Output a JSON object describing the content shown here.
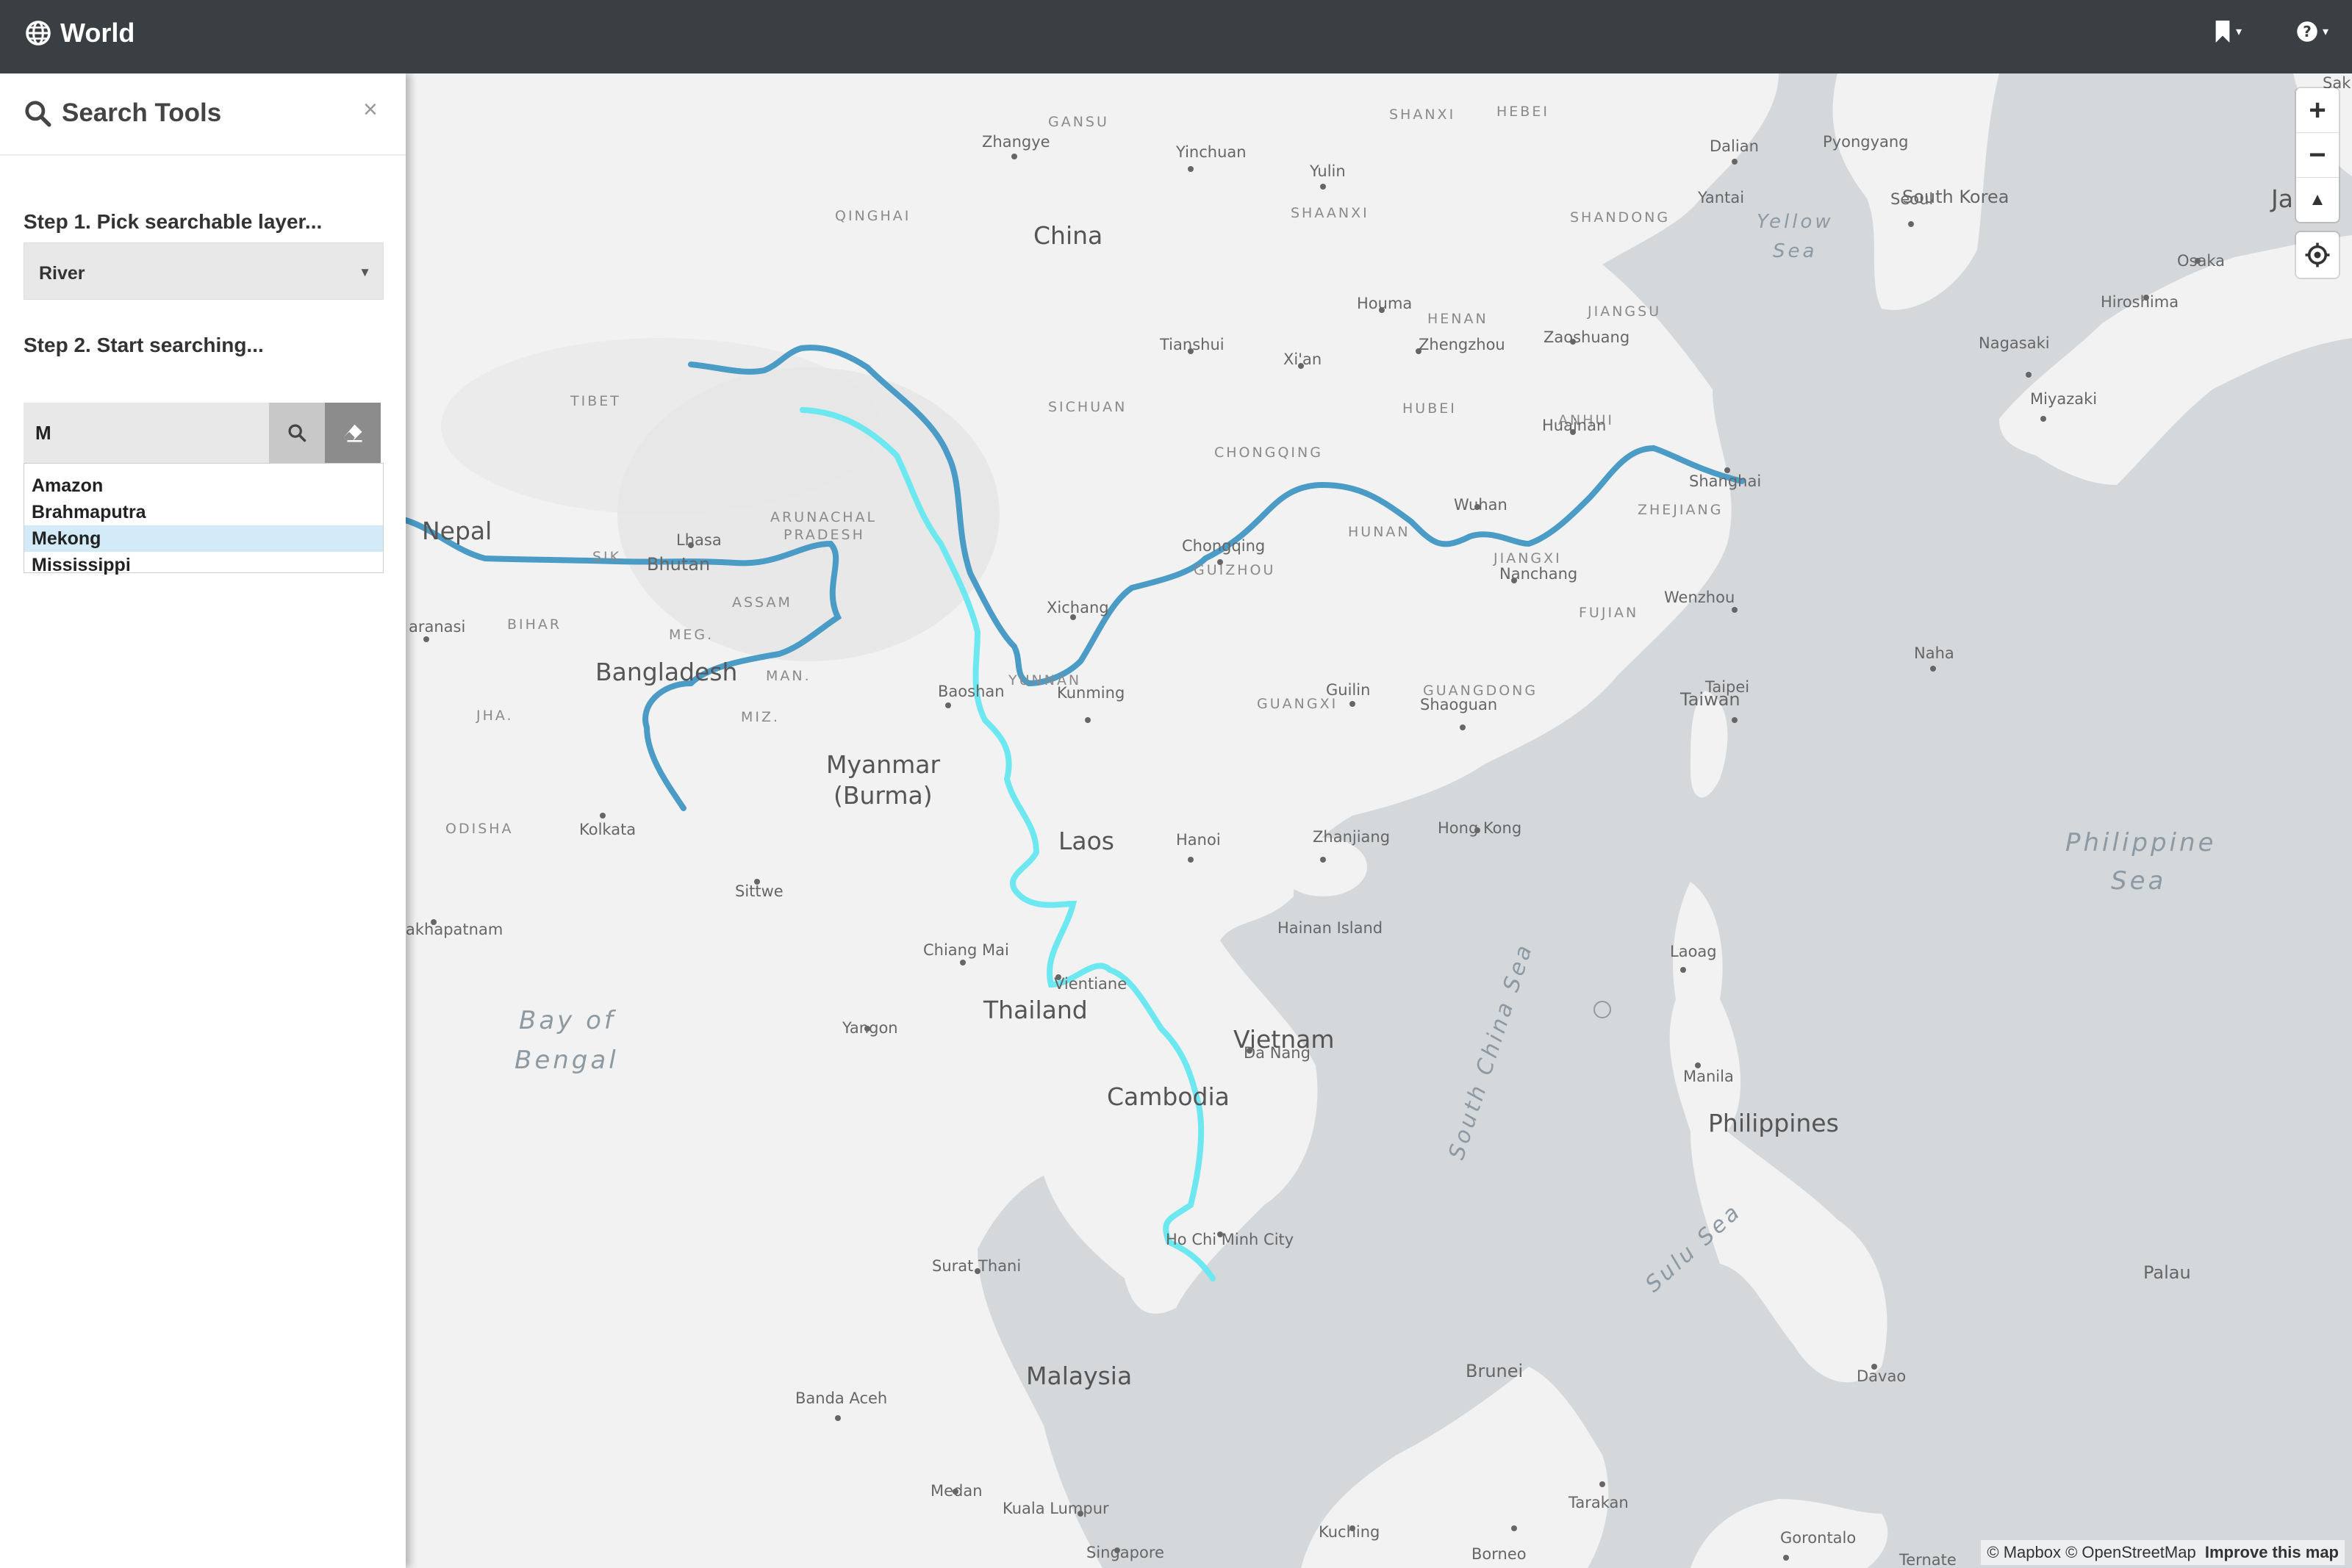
{
  "navbar": {
    "brand": "World",
    "brand_icon": "globe-icon",
    "bookmark_icon": "bookmark-icon",
    "help_icon": "question-circle-icon"
  },
  "sidebar": {
    "title": "Search Tools",
    "close": "×",
    "step1": "Step 1. Pick searchable layer...",
    "selected_layer": "River",
    "step2": "Step 2. Start searching...",
    "search_value": "M",
    "suggestions": [
      "Amazon",
      "Brahmaputra",
      "Mekong",
      "Mississippi"
    ],
    "highlighted_suggestion": "Mekong"
  },
  "map": {
    "zoom_in": "+",
    "zoom_out": "−",
    "compass": "▲",
    "attribution": "© Mapbox © OpenStreetMap",
    "attribution_link": "Improve this map",
    "colors": {
      "land": "#f2f2f2",
      "water": "#d4d8db",
      "river": "#4a9cc7",
      "highlight": "#6de8f0"
    },
    "labels": {
      "china": "China",
      "nepal": "Nepal",
      "bhutan": "Bhutan",
      "bangladesh": "Bangladesh",
      "myanmar1": "Myanmar",
      "myanmar2": "(Burma)",
      "laos": "Laos",
      "thailand": "Thailand",
      "vietnam": "Vietnam",
      "cambodia": "Cambodia",
      "malaysia": "Malaysia",
      "philippines": "Philippines",
      "south_korea": "South Korea",
      "taiwan": "Taiwan",
      "brunei": "Brunei",
      "palau": "Palau",
      "ja": "Ja",
      "yellow_sea1": "Yellow",
      "yellow_sea2": "Sea",
      "philippine_sea1": "Philippine",
      "philippine_sea2": "Sea",
      "bay_of1": "Bay of",
      "bay_of2": "Bengal",
      "south_china_sea": "South China Sea",
      "sulu_sea": "Sulu Sea",
      "qinghai": "QINGHAI",
      "gansu": "GANSU",
      "shaanxi": "SHAANXI",
      "shanxi": "SHANXI",
      "hebei": "HEBEI",
      "shandong": "SHANDONG",
      "henan": "HENAN",
      "jiangsu": "JIANGSU",
      "anhui": "ANHUI",
      "hubei": "HUBEI",
      "sichuan": "SICHUAN",
      "tibet": "TIBET",
      "chongqing_p": "CHONGQING",
      "hunan": "HUNAN",
      "guizhou": "GUIZHOU",
      "jiangxi": "JIANGXI",
      "zhejiang": "ZHEJIANG",
      "fujian": "FUJIAN",
      "yunnan": "YUNNAN",
      "guangxi": "GUANGXI",
      "guangdong": "GUANGDONG",
      "arunachal1": "ARUNACHAL",
      "arunachal2": "PRADESH",
      "assam": "ASSAM",
      "meg": "MEG.",
      "man": "MAN.",
      "miz": "MIZ.",
      "jha": "JHA.",
      "bihar": "BIHAR",
      "odisha": "ODISHA",
      "sik": "SIK.",
      "zhangye": "Zhangye",
      "yinchuan": "Yinchuan",
      "yulin": "Yulin",
      "dalian": "Dalian",
      "pyongyang": "Pyongyang",
      "yantai": "Yantai",
      "seoul": "Seoul",
      "houma": "Houma",
      "tianshui": "Tianshui",
      "xian": "Xi'an",
      "zhengzhou": "Zhengzhou",
      "zaoshuang": "Zaoshuang",
      "huainan": "Huainan",
      "shanghai": "Shanghai",
      "wuhan": "Wuhan",
      "chongqing": "Chongqing",
      "nanchang": "Nanchang",
      "xichang": "Xichang",
      "lhasa": "Lhasa",
      "baoshan": "Baoshan",
      "kunming": "Kunming",
      "guilin": "Guilin",
      "shaoguan": "Shaoguan",
      "wenzhou": "Wenzhou",
      "taipei": "Taipei",
      "naha": "Naha",
      "hanoi": "Hanoi",
      "zhanjiang": "Zhanjiang",
      "hong_kong": "Hong Kong",
      "hainan": "Hainan Island",
      "chiang_mai": "Chiang Mai",
      "vientiane": "Vientiane",
      "yangon": "Yangon",
      "da_nang": "Da Nang",
      "laoag": "Laoag",
      "manila": "Manila",
      "ho_chi_minh": "Ho Chi Minh City",
      "surat_thani": "Surat Thani",
      "banda_aceh": "Banda Aceh",
      "medan": "Medan",
      "kuala_lumpur": "Kuala Lumpur",
      "singapore": "Singapore",
      "kuching": "Kuching",
      "borneo": "Borneo",
      "tarakan": "Tarakan",
      "davao": "Davao",
      "ternate": "Ternate",
      "gorontalo": "Gorontalo",
      "kolkata": "Kolkata",
      "sittwe": "Sittwe",
      "varanasi": "aranasi",
      "visakhapatnam": "akhapatnam",
      "hiroshima": "Hiroshima",
      "osaka": "Osaka",
      "nagasaki": "Nagasaki",
      "miyazaki": "Miyazaki",
      "sak": "Sak"
    }
  }
}
